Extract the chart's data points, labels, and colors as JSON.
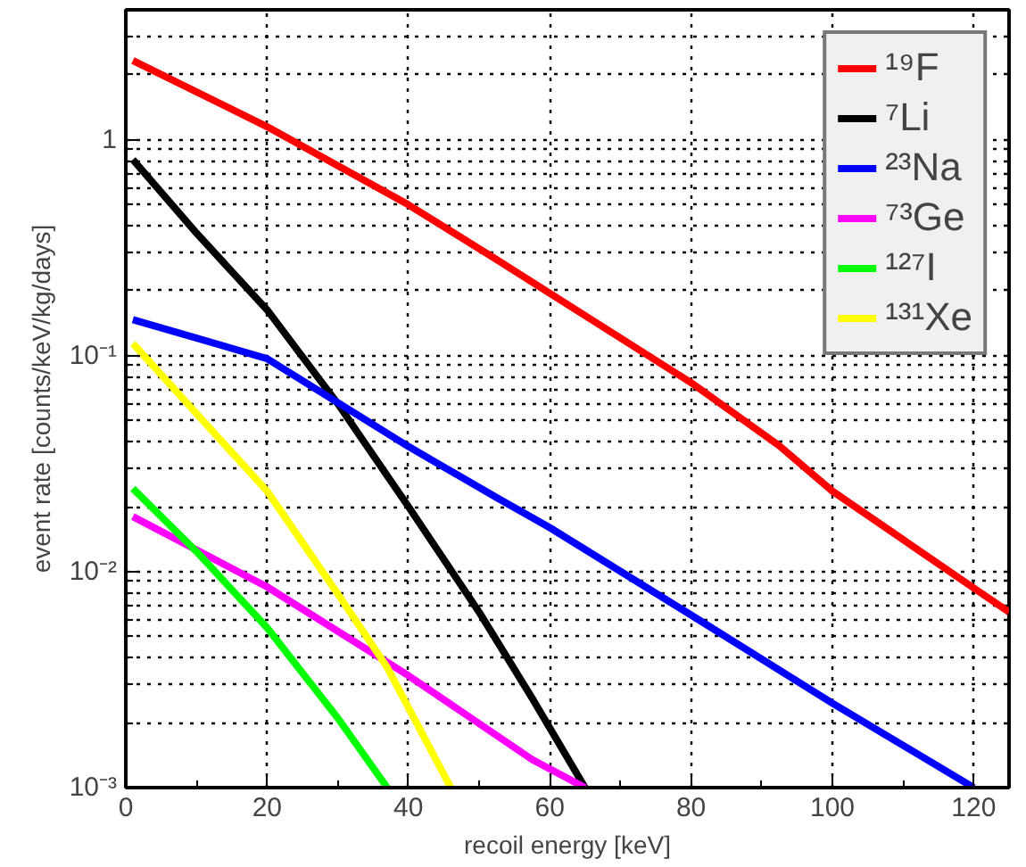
{
  "chart_data": {
    "type": "line",
    "xlabel": "recoil energy [keV]",
    "ylabel": "event rate [counts/keV/kg/days]",
    "log": "y",
    "grid": true,
    "legend": "top right",
    "line_style": "solid",
    "xlim": [
      0,
      125
    ],
    "ylim": [
      0.001,
      4
    ],
    "xticks": [
      0,
      20,
      40,
      60,
      80,
      100,
      120
    ],
    "yticks": [
      {
        "value": 0.001,
        "label": "10⁻³"
      },
      {
        "value": 0.01,
        "label": "10⁻²"
      },
      {
        "value": 0.1,
        "label": "10⁻¹"
      },
      1
    ],
    "series": [
      {
        "name": "¹⁹F",
        "color": "#ff0000",
        "x": [
          1,
          20,
          40,
          52.4,
          80,
          92.4,
          100,
          120,
          125
        ],
        "values": [
          2.33,
          1.15,
          0.5,
          0.28,
          0.075,
          0.0385,
          0.0236,
          0.0084,
          0.0065
        ]
      },
      {
        "name": "⁷Li",
        "color": "#000000",
        "x": [
          1,
          10,
          20,
          30,
          40,
          50,
          57.5,
          65
        ],
        "values": [
          0.81,
          0.37,
          0.163,
          0.06,
          0.02,
          0.0065,
          0.0026,
          0.001
        ]
      },
      {
        "name": "²³Na",
        "color": "#0000ff",
        "x": [
          1,
          20,
          40,
          52.4,
          60,
          80,
          100,
          120
        ],
        "values": [
          0.147,
          0.097,
          0.038,
          0.0221,
          0.016,
          0.0063,
          0.00246,
          0.001
        ]
      },
      {
        "name": "⁷³Ge",
        "color": "#ff00ff",
        "x": [
          1,
          20,
          40,
          57.5,
          65
        ],
        "values": [
          0.018,
          0.0085,
          0.0033,
          0.00135,
          0.001
        ]
      },
      {
        "name": "¹²⁷I",
        "color": "#00ff00",
        "x": [
          1,
          10,
          20,
          30,
          37
        ],
        "values": [
          0.0243,
          0.0124,
          0.0055,
          0.0021,
          0.001
        ]
      },
      {
        "name": "¹³¹Xe",
        "color": "#ffff00",
        "x": [
          1,
          10,
          20,
          30,
          37,
          46
        ],
        "values": [
          0.114,
          0.054,
          0.0236,
          0.0079,
          0.0036,
          0.001
        ]
      }
    ]
  }
}
